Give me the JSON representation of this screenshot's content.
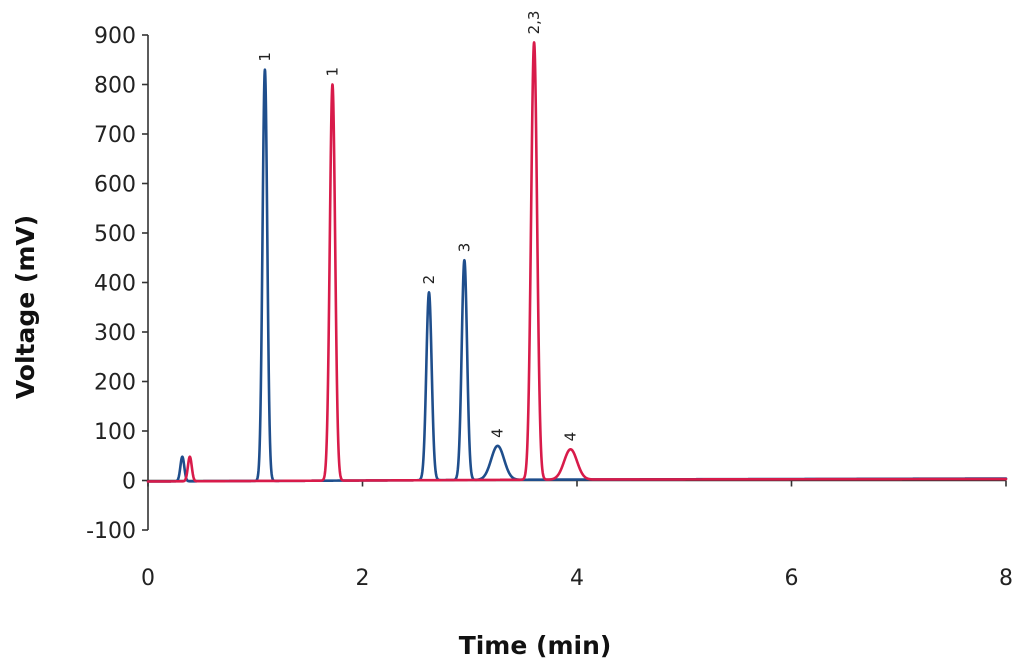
{
  "chart_data": {
    "type": "line",
    "title": "",
    "xlabel": "Time (min)",
    "ylabel": "Voltage (mV)",
    "xlim": [
      0,
      8
    ],
    "ylim": [
      -100,
      900
    ],
    "xticks": [
      0,
      2,
      4,
      6,
      8
    ],
    "yticks": [
      -100,
      0,
      100,
      200,
      300,
      400,
      500,
      600,
      700,
      800,
      900
    ],
    "grid": false,
    "legend": "none",
    "series": [
      {
        "color": "#1f4e8c",
        "baseline": [
          [
            0,
            -2
          ],
          [
            2,
            0
          ],
          [
            4,
            2
          ],
          [
            8,
            4
          ]
        ],
        "peaks": [
          {
            "label": "",
            "x": 0.32,
            "y": 48,
            "width": 0.018
          },
          {
            "label": "1",
            "x": 1.09,
            "y": 830,
            "width": 0.022
          },
          {
            "label": "2",
            "x": 2.62,
            "y": 380,
            "width": 0.025
          },
          {
            "label": "3",
            "x": 2.95,
            "y": 445,
            "width": 0.025
          },
          {
            "label": "4",
            "x": 3.26,
            "y": 70,
            "width": 0.06
          }
        ]
      },
      {
        "color": "#d81b4a",
        "baseline": [
          [
            0,
            -2
          ],
          [
            2,
            0
          ],
          [
            4,
            2
          ],
          [
            8,
            3
          ]
        ],
        "peaks": [
          {
            "label": "",
            "x": 0.39,
            "y": 48,
            "width": 0.018
          },
          {
            "label": "1",
            "x": 1.72,
            "y": 800,
            "width": 0.025
          },
          {
            "label": "2,3",
            "x": 3.6,
            "y": 885,
            "width": 0.028
          },
          {
            "label": "4",
            "x": 3.94,
            "y": 63,
            "width": 0.06
          }
        ]
      }
    ]
  }
}
